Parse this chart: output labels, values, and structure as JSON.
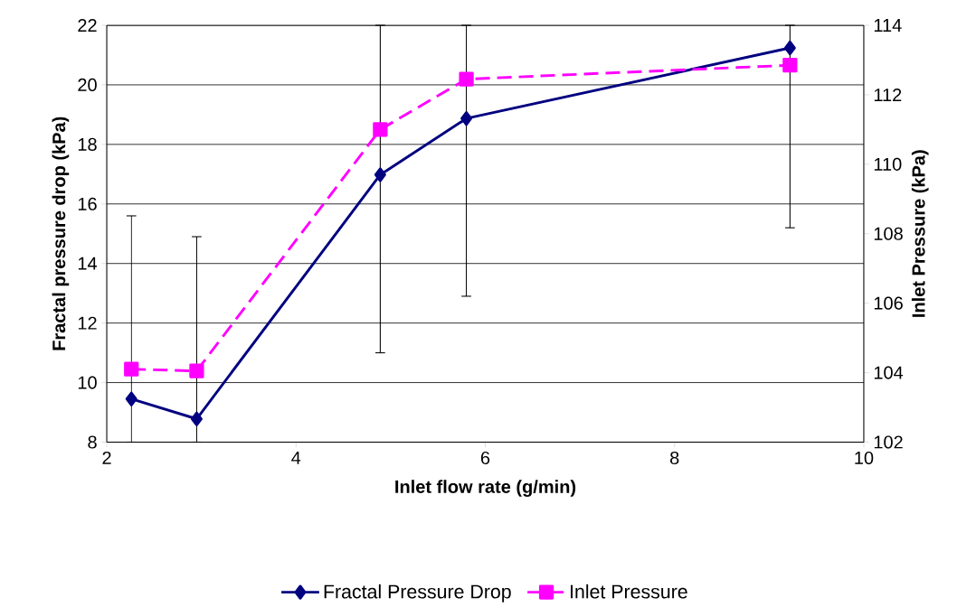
{
  "chart_data": {
    "type": "line",
    "xlabel": "Inlet flow rate (g/min)",
    "ylabel": "Fractal pressure drop (kPa)",
    "y2label": "Inlet Pressure (kPa)",
    "xlim": [
      2,
      10
    ],
    "xticks": [
      2,
      4,
      6,
      8,
      10
    ],
    "ylim": [
      8,
      22
    ],
    "yticks": [
      8,
      10,
      12,
      14,
      16,
      18,
      20,
      22
    ],
    "y2lim": [
      102,
      114
    ],
    "y2ticks": [
      102,
      104,
      106,
      108,
      110,
      112,
      114
    ],
    "grid": "y",
    "legend": "bottom",
    "series": [
      {
        "name": "Fractal Pressure Drop",
        "color": "#000080",
        "marker": "diamond",
        "line_style": "solid",
        "x": [
          2.26,
          2.95,
          4.89,
          5.8,
          9.22
        ],
        "values": [
          9.45,
          8.78,
          16.98,
          18.87,
          21.24
        ],
        "errors": [
          [
            8,
            15.6
          ],
          [
            8,
            14.9
          ],
          [
            11.0,
            22
          ],
          [
            12.9,
            22
          ],
          [
            15.2,
            22
          ]
        ]
      },
      {
        "name": "Inlet Pressure",
        "color": "#ff00ff",
        "marker": "square",
        "line_style": "dashed",
        "axis": "y2",
        "x": [
          2.26,
          2.95,
          4.89,
          5.8,
          9.22
        ],
        "values": [
          104.1,
          104.05,
          111.0,
          112.45,
          112.85
        ]
      }
    ]
  }
}
